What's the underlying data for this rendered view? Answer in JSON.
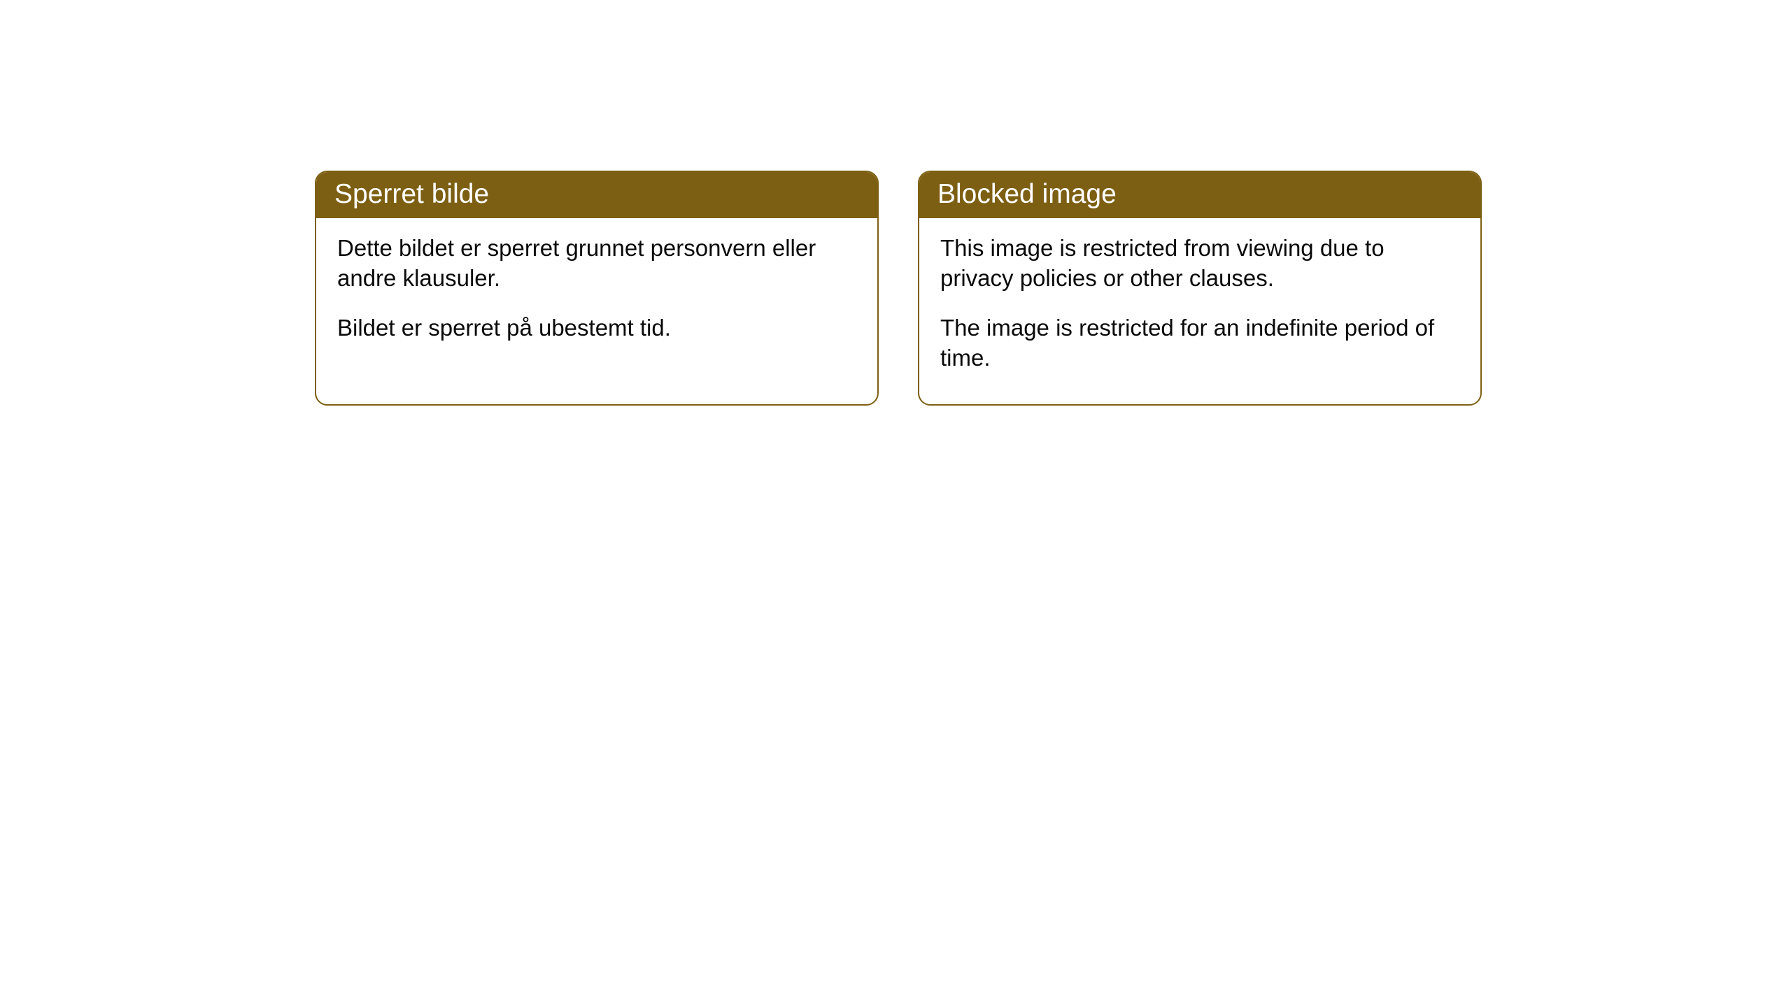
{
  "cards": [
    {
      "title": "Sperret bilde",
      "paragraph1": "Dette bildet er sperret grunnet personvern eller andre klausuler.",
      "paragraph2": "Bildet er sperret på ubestemt tid."
    },
    {
      "title": "Blocked image",
      "paragraph1": "This image is restricted from viewing due to privacy policies or other clauses.",
      "paragraph2": "The image is restricted for an indefinite period of time."
    }
  ],
  "styling": {
    "header_bg_color": "#7d5f13",
    "header_text_color": "#ffffff",
    "border_color": "#7d5f13",
    "body_text_color": "#0a0a0a",
    "card_bg_color": "#ffffff",
    "page_bg_color": "#ffffff",
    "border_radius": 18,
    "header_fontsize": 39,
    "body_fontsize": 33
  }
}
